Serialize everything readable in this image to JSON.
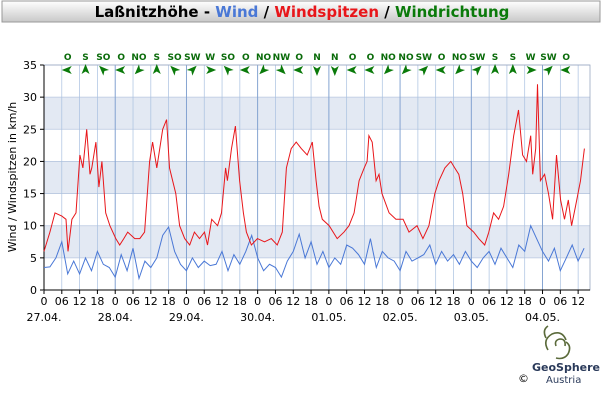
{
  "chart_data": {
    "type": "line",
    "title_prefix": "Laßnitzhöhe - ",
    "title_separator": " / ",
    "ylabel": "Wind / Windspitzen in km/h",
    "xlim": [
      0,
      184
    ],
    "ylim": [
      0,
      35
    ],
    "yticks": [
      0,
      5,
      10,
      15,
      20,
      25,
      30,
      35
    ],
    "xticks": [
      0,
      {
        "value": 6,
        "label": "06"
      },
      12,
      18,
      {
        "value": 24,
        "label": "0"
      },
      {
        "value": 30,
        "label": "06"
      },
      {
        "value": 36,
        "label": "12"
      },
      {
        "value": 42,
        "label": "18"
      },
      {
        "value": 48,
        "label": "0"
      },
      {
        "value": 54,
        "label": "06"
      },
      {
        "value": 60,
        "label": "12"
      },
      {
        "value": 66,
        "label": "18"
      },
      {
        "value": 72,
        "label": "0"
      },
      {
        "value": 78,
        "label": "06"
      },
      {
        "value": 84,
        "label": "12"
      },
      {
        "value": 90,
        "label": "18"
      },
      {
        "value": 96,
        "label": "0"
      },
      {
        "value": 102,
        "label": "06"
      },
      {
        "value": 108,
        "label": "12"
      },
      {
        "value": 114,
        "label": "18"
      },
      {
        "value": 120,
        "label": "0"
      },
      {
        "value": 126,
        "label": "06"
      },
      {
        "value": 132,
        "label": "12"
      },
      {
        "value": 138,
        "label": "18"
      },
      {
        "value": 144,
        "label": "0"
      },
      {
        "value": 150,
        "label": "06"
      },
      {
        "value": 156,
        "label": "12"
      },
      {
        "value": 162,
        "label": "18"
      },
      {
        "value": 168,
        "label": "0"
      },
      {
        "value": 174,
        "label": "06"
      },
      {
        "value": 180,
        "label": "12"
      }
    ],
    "date_labels": [
      {
        "value": 0,
        "label": "27.04."
      },
      {
        "value": 24,
        "label": "28.04."
      },
      {
        "value": 48,
        "label": "29.04."
      },
      {
        "value": 72,
        "label": "30.04."
      },
      {
        "value": 96,
        "label": "01.05."
      },
      {
        "value": 120,
        "label": "02.05."
      },
      {
        "value": 144,
        "label": "03.05."
      },
      {
        "value": 168,
        "label": "04.05."
      }
    ],
    "grid": true,
    "series": [
      {
        "name": "Wind",
        "color": "#4a78d6",
        "x": [
          0,
          2,
          4,
          6,
          8,
          10,
          12,
          14,
          16,
          18,
          20,
          22,
          24,
          26,
          28,
          30,
          32,
          34,
          36,
          38,
          40,
          42,
          44,
          46,
          48,
          50,
          52,
          54,
          56,
          58,
          60,
          62,
          64,
          66,
          68,
          70,
          72,
          74,
          76,
          78,
          80,
          82,
          84,
          86,
          88,
          90,
          92,
          94,
          96,
          98,
          100,
          102,
          104,
          106,
          108,
          110,
          112,
          114,
          116,
          118,
          120,
          122,
          124,
          126,
          128,
          130,
          132,
          134,
          136,
          138,
          140,
          142,
          144,
          146,
          148,
          150,
          152,
          154,
          156,
          158,
          160,
          162,
          164,
          166,
          168,
          170,
          172,
          174,
          176,
          178,
          180,
          182
        ],
        "values": [
          3.5,
          3.6,
          5,
          7.5,
          2.5,
          4.5,
          2.5,
          5,
          3,
          6,
          4,
          3.5,
          2,
          5.5,
          3,
          6.5,
          1.8,
          4.5,
          3.5,
          5,
          8.5,
          9.8,
          6,
          4,
          3,
          5,
          3.5,
          4.5,
          3.8,
          4,
          6,
          3,
          5.5,
          4,
          6,
          8.5,
          5,
          3,
          4,
          3.5,
          2,
          4.5,
          6,
          8.7,
          5,
          7.5,
          4,
          6,
          3.5,
          5,
          4,
          7,
          6.5,
          5.5,
          4,
          8,
          3.5,
          6,
          5,
          4.5,
          3,
          6,
          4.5,
          5,
          5.5,
          7,
          4,
          6,
          4.5,
          5.5,
          4,
          6,
          4.5,
          3.5,
          5,
          6,
          4,
          6.5,
          5,
          3.5,
          7,
          6,
          10,
          8,
          6,
          4.5,
          6.5,
          3,
          5,
          7,
          4.5,
          6.5
        ]
      },
      {
        "name": "Windspitzen",
        "color": "#e8161a",
        "x": [
          0,
          2.0,
          3.7,
          6.0,
          7.4,
          8.1,
          9.4,
          10.8,
          12.1,
          13.1,
          14.4,
          15.5,
          16.1,
          17.5,
          18.5,
          19.5,
          20.8,
          22.2,
          24.2,
          25.5,
          26.9,
          28.2,
          30.6,
          32.3,
          33.9,
          35.6,
          36.6,
          38.0,
          40.0,
          41.3,
          42.3,
          44.4,
          45.7,
          47.4,
          49.1,
          50.7,
          52.4,
          54.1,
          55.1,
          56.5,
          58.5,
          59.8,
          61.2,
          61.8,
          63.2,
          64.5,
          65.9,
          67.2,
          68.2,
          69.9,
          71.9,
          74.3,
          76.6,
          78.6,
          80.3,
          81.7,
          83.3,
          85.0,
          86.7,
          88.7,
          90.4,
          91.7,
          92.7,
          93.8,
          96.1,
          98.8,
          101.1,
          102.8,
          104.5,
          106.2,
          107.9,
          108.9,
          109.5,
          110.6,
          111.9,
          112.9,
          113.9,
          116.3,
          118.6,
          121.0,
          123.0,
          125.7,
          127.7,
          129.7,
          131.7,
          133.1,
          135.1,
          137.1,
          138.4,
          139.8,
          141.1,
          142.5,
          144.8,
          146.5,
          148.5,
          149.9,
          151.5,
          153.2,
          154.9,
          156.6,
          158.3,
          159.9,
          161.3,
          162.6,
          164.0,
          164.7,
          165.7,
          166.3,
          167.3,
          168.7,
          170.0,
          171.4,
          172.7,
          174.1,
          175.4,
          176.7,
          177.8,
          179.1,
          180.8,
          182.1
        ],
        "values": [
          6,
          9,
          12,
          11.5,
          11,
          6,
          11,
          12,
          21,
          19,
          25,
          18,
          19,
          23,
          16,
          20,
          12,
          10,
          8,
          7,
          8,
          9,
          8,
          8,
          9,
          20,
          23,
          19,
          25,
          26.5,
          19,
          15,
          10,
          8,
          7,
          9,
          8,
          9,
          7,
          11,
          10,
          12,
          19,
          17,
          22,
          25.5,
          17,
          12,
          9,
          7,
          8,
          7.5,
          8,
          7,
          9,
          19,
          22,
          23,
          22,
          21,
          23,
          17,
          13,
          11,
          10,
          8,
          9,
          10,
          12,
          17,
          19,
          20,
          24,
          23,
          17,
          18,
          15,
          12,
          11,
          11,
          9,
          10,
          8,
          10,
          15,
          17,
          19,
          20,
          19,
          18,
          15,
          10,
          9,
          8,
          7,
          9,
          12,
          11,
          13,
          18,
          24,
          28,
          21,
          20,
          24,
          18,
          22,
          32,
          17,
          18,
          15,
          11,
          21,
          14,
          11,
          14,
          10,
          13,
          17,
          22
        ]
      }
    ],
    "direction": {
      "name": "Windrichtung",
      "color": "#0a7a0a",
      "x": [
        8,
        14,
        20,
        26,
        32,
        38,
        44,
        50,
        56,
        62,
        68,
        74,
        80,
        86,
        92,
        98,
        104,
        110,
        116,
        122,
        128,
        134,
        140,
        146,
        152,
        158,
        164,
        170,
        176
      ],
      "labels": [
        "O",
        "S",
        "SO",
        "O",
        "NO",
        "S",
        "SO",
        "SW",
        "W",
        "SO",
        "O",
        "NO",
        "NW",
        "O",
        "N",
        "N",
        "O",
        "O",
        "NO",
        "NO",
        "SW",
        "O",
        "NO",
        "SW",
        "S",
        "S",
        "W",
        "SW",
        "O"
      ],
      "degrees": [
        90,
        180,
        135,
        90,
        45,
        180,
        135,
        225,
        270,
        135,
        90,
        45,
        315,
        90,
        0,
        0,
        90,
        90,
        45,
        45,
        225,
        90,
        45,
        225,
        180,
        180,
        270,
        225,
        90
      ]
    },
    "logo": {
      "name": "GeoSphere",
      "sub": "Austria",
      "copyright": "©"
    }
  }
}
